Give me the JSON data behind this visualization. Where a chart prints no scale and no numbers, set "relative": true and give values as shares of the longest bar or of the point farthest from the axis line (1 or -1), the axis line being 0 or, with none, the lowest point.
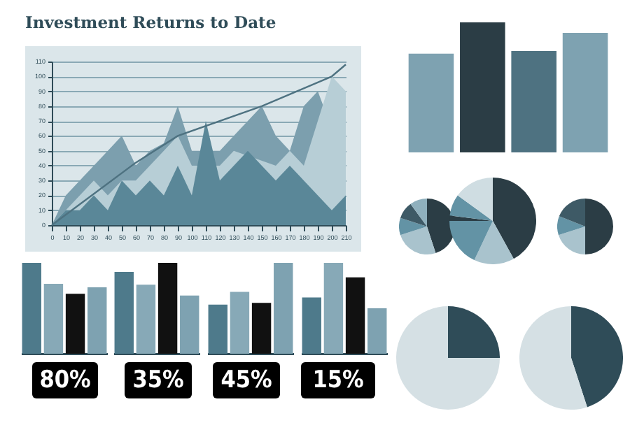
{
  "chart_data": [
    {
      "type": "area",
      "title": "Investment Returns to Date",
      "x": [
        0,
        10,
        20,
        30,
        40,
        50,
        60,
        70,
        80,
        90,
        100,
        110,
        120,
        130,
        140,
        150,
        160,
        170,
        180,
        190,
        200,
        210
      ],
      "series": [
        {
          "color": "#7c9fae",
          "x": [
            0,
            10,
            20,
            30,
            40,
            50,
            60,
            70,
            80,
            90,
            100,
            120,
            130,
            140,
            150,
            160,
            170,
            180,
            190,
            210
          ],
          "values": [
            0,
            20,
            30,
            40,
            50,
            60,
            40,
            50,
            55,
            80,
            50,
            50,
            60,
            70,
            80,
            60,
            50,
            80,
            90,
            40
          ]
        },
        {
          "color": "#b7ced6",
          "x": [
            0,
            10,
            20,
            30,
            40,
            50,
            60,
            70,
            80,
            90,
            100,
            120,
            130,
            160,
            170,
            180,
            190,
            200,
            210
          ],
          "values": [
            0,
            10,
            20,
            30,
            20,
            30,
            30,
            40,
            50,
            60,
            40,
            40,
            50,
            40,
            50,
            40,
            70,
            100,
            90
          ]
        },
        {
          "color": "#5a8798",
          "values": [
            0,
            10,
            10,
            20,
            10,
            30,
            20,
            30,
            20,
            40,
            20,
            70,
            30,
            40,
            50,
            40,
            30,
            40,
            30,
            20,
            10,
            20
          ]
        },
        {
          "type": "line",
          "color": "#4e7281",
          "x": [
            0,
            60,
            90,
            150,
            200,
            210
          ],
          "values": [
            0,
            42,
            60,
            80,
            100,
            108
          ]
        }
      ],
      "xlim": [
        0,
        210
      ],
      "ylim": [
        0,
        110
      ],
      "xticks": [
        0,
        10,
        20,
        30,
        40,
        50,
        60,
        70,
        80,
        90,
        100,
        110,
        120,
        130,
        140,
        150,
        160,
        170,
        180,
        190,
        200,
        210
      ],
      "yticks": [
        0,
        10,
        20,
        30,
        40,
        50,
        60,
        70,
        80,
        90,
        100,
        110
      ],
      "grid": "y"
    },
    {
      "type": "bar",
      "relative": true,
      "categories": [
        null,
        null,
        null,
        null
      ],
      "values": [
        0.76,
        1,
        0.78,
        0.92
      ],
      "colors": [
        "#7ea2b1",
        "#2b3d45",
        "#4e7281",
        "#7ea2b1"
      ]
    },
    {
      "type": "pie",
      "categories": [
        null,
        null,
        null,
        null,
        null
      ],
      "values": [
        45,
        25,
        10,
        10,
        10
      ],
      "colors": [
        "#2b3d45",
        "#a9c3cd",
        "#6393a5",
        "#3e5a66",
        "#8fb0bd"
      ]
    },
    {
      "type": "pie",
      "categories": [
        null,
        null,
        null,
        null,
        null,
        null
      ],
      "values": [
        42,
        15,
        18,
        2,
        8,
        15
      ],
      "colors": [
        "#2b3d45",
        "#a9c3cd",
        "#6393a5",
        "#2b3d45",
        "#6393a5",
        "#cfdde2"
      ]
    },
    {
      "type": "pie",
      "categories": [
        null,
        null,
        null,
        null
      ],
      "values": [
        50,
        20,
        11,
        19
      ],
      "colors": [
        "#2b3d45",
        "#a9c3cd",
        "#6393a5",
        "#3e5a66"
      ]
    },
    {
      "type": "bar",
      "relative": true,
      "categories": [
        null,
        null,
        null,
        null
      ],
      "values": [
        1,
        0.77,
        0.66,
        0.73
      ],
      "colors": [
        "#4e7a8b",
        "#87a9b7",
        "#111111",
        "#7ea2b1"
      ],
      "annotations": [
        "80%"
      ]
    },
    {
      "type": "bar",
      "relative": true,
      "categories": [
        null,
        null,
        null,
        null
      ],
      "values": [
        0.9,
        0.76,
        1,
        0.64
      ],
      "colors": [
        "#4e7a8b",
        "#87a9b7",
        "#111111",
        "#7ea2b1"
      ],
      "annotations": [
        "35%"
      ]
    },
    {
      "type": "bar",
      "relative": true,
      "categories": [
        null,
        null,
        null,
        null
      ],
      "values": [
        0.54,
        0.68,
        0.56,
        1
      ],
      "colors": [
        "#4e7a8b",
        "#87a9b7",
        "#111111",
        "#7ea2b1"
      ],
      "annotations": [
        "45%"
      ]
    },
    {
      "type": "bar",
      "relative": true,
      "categories": [
        null,
        null,
        null,
        null
      ],
      "values": [
        0.62,
        1,
        0.84,
        0.5
      ],
      "colors": [
        "#4e7a8b",
        "#87a9b7",
        "#111111",
        "#7ea2b1"
      ],
      "annotations": [
        "15%"
      ]
    },
    {
      "type": "pie",
      "categories": [
        null,
        null
      ],
      "values": [
        25,
        75
      ],
      "colors": [
        "#2f4c58",
        "#d5e0e4"
      ]
    },
    {
      "type": "pie",
      "categories": [
        null,
        null
      ],
      "values": [
        45,
        55
      ],
      "colors": [
        "#2f4c58",
        "#d5e0e4"
      ]
    }
  ]
}
